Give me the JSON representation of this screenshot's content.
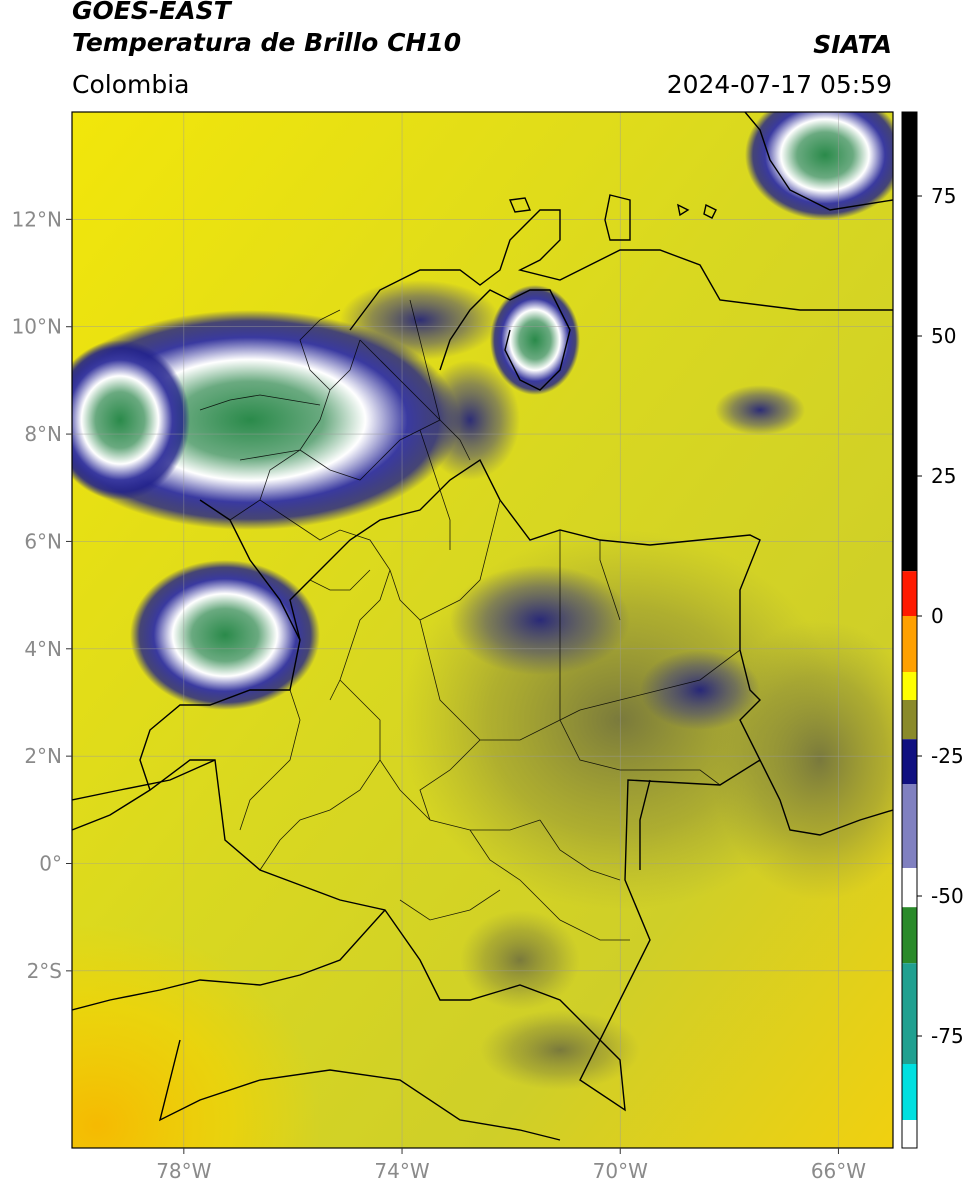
{
  "header": {
    "satellite": "GOES-EAST",
    "product": "Temperatura de Brillo CH10",
    "region": "Colombia",
    "agency": "SIATA",
    "timestamp": "2024-07-17 05:59"
  },
  "map": {
    "lat_labels": [
      {
        "lat": 12,
        "label": "12°N"
      },
      {
        "lat": 10,
        "label": "10°N"
      },
      {
        "lat": 8,
        "label": "8°N"
      },
      {
        "lat": 6,
        "label": "6°N"
      },
      {
        "lat": 4,
        "label": "4°N"
      },
      {
        "lat": 2,
        "label": "2°N"
      },
      {
        "lat": 0,
        "label": "0°"
      },
      {
        "lat": -2,
        "label": "2°S"
      }
    ],
    "lon_labels": [
      {
        "lon": -78,
        "label": "78°W"
      },
      {
        "lon": -74,
        "label": "74°W"
      },
      {
        "lon": -70,
        "label": "70°W"
      },
      {
        "lon": -66,
        "label": "66°W"
      }
    ],
    "lon_range": [
      -80.05,
      -65.0
    ],
    "lat_range": [
      -5.3,
      14.0
    ],
    "base_color": "#e2e21a"
  },
  "colorbar": {
    "ticks": [
      {
        "value": 75,
        "label": "75"
      },
      {
        "value": 50,
        "label": "50"
      },
      {
        "value": 25,
        "label": "25"
      },
      {
        "value": 0,
        "label": "0"
      },
      {
        "value": -25,
        "label": "-25"
      },
      {
        "value": -50,
        "label": "-50"
      },
      {
        "value": -75,
        "label": "-75"
      }
    ],
    "range": [
      -95,
      90
    ],
    "colors": {
      "black": "#000000",
      "red": "#ff1a00",
      "orange": "#ffa000",
      "yellow": "#ffff00",
      "olive": "#8a8a2a",
      "navy": "#101080",
      "white": "#ffffff",
      "green": "#2a8a2a",
      "teal": "#20a090",
      "cyan": "#00e0e0"
    }
  }
}
